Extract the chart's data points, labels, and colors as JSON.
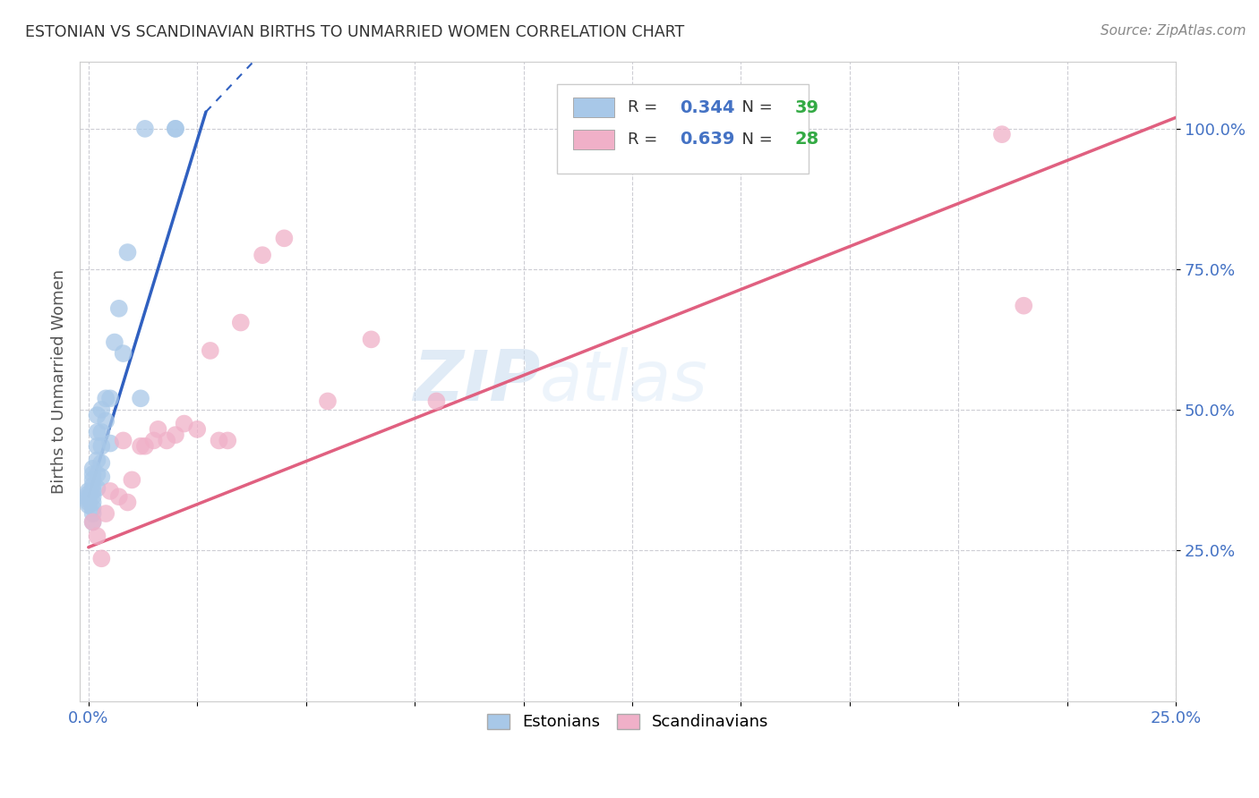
{
  "title": "ESTONIAN VS SCANDINAVIAN BIRTHS TO UNMARRIED WOMEN CORRELATION CHART",
  "source": "Source: ZipAtlas.com",
  "ylabel": "Births to Unmarried Women",
  "xlim": [
    -0.002,
    0.25
  ],
  "ylim": [
    -0.02,
    1.12
  ],
  "xtick_positions": [
    0.0,
    0.025,
    0.05,
    0.075,
    0.1,
    0.125,
    0.15,
    0.175,
    0.2,
    0.225,
    0.25
  ],
  "xticklabels": [
    "0.0%",
    "",
    "",
    "",
    "",
    "",
    "",
    "",
    "",
    "",
    "25.0%"
  ],
  "ytick_positions": [
    0.25,
    0.5,
    0.75,
    1.0
  ],
  "ytick_labels": [
    "25.0%",
    "50.0%",
    "75.0%",
    "100.0%"
  ],
  "estonians_color": "#A8C8E8",
  "scandinavians_color": "#F0B0C8",
  "blue_line_color": "#3060C0",
  "pink_line_color": "#E06080",
  "legend_blue": "#4472C4",
  "legend_green": "#33AA44",
  "watermark": "ZIPatlas",
  "estonians": {
    "x": [
      0.0,
      0.0,
      0.0,
      0.0,
      0.0,
      0.0,
      0.001,
      0.001,
      0.001,
      0.001,
      0.001,
      0.001,
      0.001,
      0.001,
      0.001,
      0.001,
      0.002,
      0.002,
      0.002,
      0.002,
      0.002,
      0.002,
      0.003,
      0.003,
      0.003,
      0.003,
      0.003,
      0.004,
      0.004,
      0.005,
      0.005,
      0.006,
      0.007,
      0.008,
      0.009,
      0.012,
      0.013,
      0.02,
      0.02
    ],
    "y": [
      0.33,
      0.335,
      0.34,
      0.345,
      0.35,
      0.355,
      0.3,
      0.315,
      0.325,
      0.335,
      0.345,
      0.355,
      0.365,
      0.375,
      0.385,
      0.395,
      0.36,
      0.385,
      0.41,
      0.435,
      0.46,
      0.49,
      0.38,
      0.405,
      0.435,
      0.46,
      0.5,
      0.48,
      0.52,
      0.44,
      0.52,
      0.62,
      0.68,
      0.6,
      0.78,
      0.52,
      1.0,
      1.0,
      1.0
    ],
    "R": 0.344,
    "N": 39
  },
  "scandinavians": {
    "x": [
      0.001,
      0.002,
      0.003,
      0.004,
      0.005,
      0.007,
      0.008,
      0.009,
      0.01,
      0.012,
      0.013,
      0.015,
      0.016,
      0.018,
      0.02,
      0.022,
      0.025,
      0.028,
      0.03,
      0.032,
      0.035,
      0.04,
      0.045,
      0.055,
      0.065,
      0.08,
      0.21,
      0.215
    ],
    "y": [
      0.3,
      0.275,
      0.235,
      0.315,
      0.355,
      0.345,
      0.445,
      0.335,
      0.375,
      0.435,
      0.435,
      0.445,
      0.465,
      0.445,
      0.455,
      0.475,
      0.465,
      0.605,
      0.445,
      0.445,
      0.655,
      0.775,
      0.805,
      0.515,
      0.625,
      0.515,
      0.99,
      0.685
    ],
    "R": 0.639,
    "N": 28
  },
  "est_reg": {
    "x": [
      0.0,
      0.027
    ],
    "y": [
      0.345,
      1.03
    ]
  },
  "est_reg_dash": {
    "x": [
      0.027,
      0.038
    ],
    "y": [
      1.03,
      1.12
    ]
  },
  "scan_reg": {
    "x": [
      0.0,
      0.25
    ],
    "y": [
      0.255,
      1.02
    ]
  }
}
